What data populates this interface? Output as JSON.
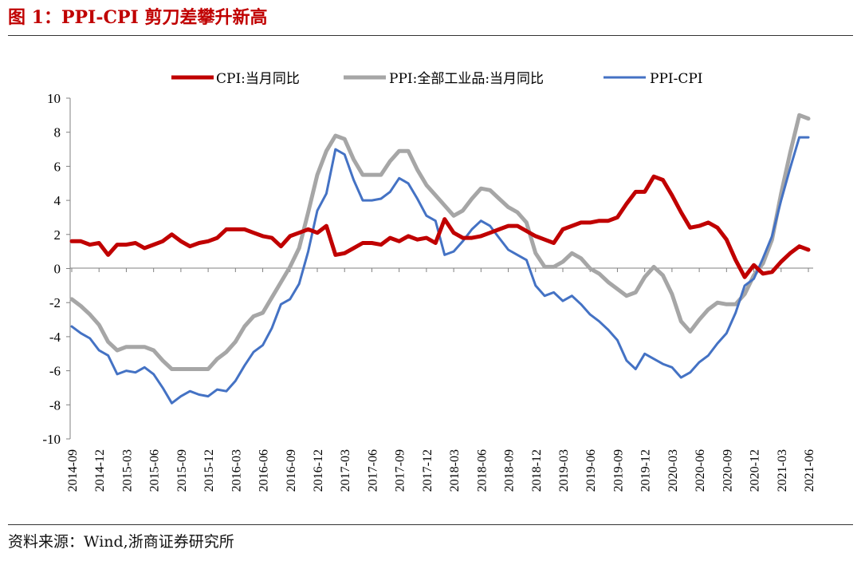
{
  "figure": {
    "title": "图 1：PPI-CPI 剪刀差攀升新高",
    "source": "资料来源：Wind,浙商证券研究所"
  },
  "colors": {
    "title": "#c00000",
    "cpi": "#c00000",
    "ppi": "#a6a6a6",
    "diff": "#4472c4",
    "axis": "#808080"
  },
  "chart_data": {
    "type": "line",
    "title": "PPI-CPI 剪刀差攀升新高",
    "xlabel": "",
    "ylabel": "",
    "ylim": [
      -10,
      10
    ],
    "yticks": [
      -10,
      -8,
      -6,
      -4,
      -2,
      0,
      2,
      4,
      6,
      8,
      10
    ],
    "xticks": [
      "2014-09",
      "2014-12",
      "2015-03",
      "2015-06",
      "2015-09",
      "2015-12",
      "2016-03",
      "2016-06",
      "2016-09",
      "2016-12",
      "2017-03",
      "2017-06",
      "2017-09",
      "2017-12",
      "2018-03",
      "2018-06",
      "2018-09",
      "2018-12",
      "2019-03",
      "2019-06",
      "2019-09",
      "2019-12",
      "2020-03",
      "2020-06",
      "2020-09",
      "2020-12",
      "2021-03",
      "2021-06"
    ],
    "legend_position": "top",
    "series": [
      {
        "name": "CPI:当月同比",
        "key": "cpi",
        "values": [
          1.6,
          1.6,
          1.4,
          1.5,
          0.8,
          1.4,
          1.4,
          1.5,
          1.2,
          1.4,
          1.6,
          2.0,
          1.6,
          1.3,
          1.5,
          1.6,
          1.8,
          2.3,
          2.3,
          2.3,
          2.1,
          1.9,
          1.8,
          1.3,
          1.9,
          2.1,
          2.3,
          2.1,
          2.5,
          0.8,
          0.9,
          1.2,
          1.5,
          1.5,
          1.4,
          1.8,
          1.6,
          1.9,
          1.7,
          1.8,
          1.5,
          2.9,
          2.1,
          1.8,
          1.8,
          1.9,
          2.1,
          2.3,
          2.5,
          2.5,
          2.2,
          1.9,
          1.7,
          1.5,
          2.3,
          2.5,
          2.7,
          2.7,
          2.8,
          2.8,
          3.0,
          3.8,
          4.5,
          4.5,
          5.4,
          5.2,
          4.3,
          3.3,
          2.4,
          2.5,
          2.7,
          2.4,
          1.7,
          0.5,
          -0.5,
          0.2,
          -0.3,
          -0.2,
          0.4,
          0.9,
          1.3,
          1.1
        ]
      },
      {
        "name": "PPI:全部工业品:当月同比",
        "key": "ppi",
        "values": [
          -1.8,
          -2.2,
          -2.7,
          -3.3,
          -4.3,
          -4.8,
          -4.6,
          -4.6,
          -4.6,
          -4.8,
          -5.4,
          -5.9,
          -5.9,
          -5.9,
          -5.9,
          -5.9,
          -5.3,
          -4.9,
          -4.3,
          -3.4,
          -2.8,
          -2.6,
          -1.7,
          -0.8,
          0.1,
          1.2,
          3.3,
          5.5,
          6.9,
          7.8,
          7.6,
          6.4,
          5.5,
          5.5,
          5.5,
          6.3,
          6.9,
          6.9,
          5.8,
          4.9,
          4.3,
          3.7,
          3.1,
          3.4,
          4.1,
          4.7,
          4.6,
          4.1,
          3.6,
          3.3,
          2.7,
          0.9,
          0.1,
          0.1,
          0.4,
          0.9,
          0.6,
          0.0,
          -0.3,
          -0.8,
          -1.2,
          -1.6,
          -1.4,
          -0.5,
          0.1,
          -0.4,
          -1.5,
          -3.1,
          -3.7,
          -3.0,
          -2.4,
          -2.0,
          -2.1,
          -2.1,
          -1.5,
          -0.4,
          0.3,
          1.7,
          4.4,
          6.8,
          9.0,
          8.8
        ]
      },
      {
        "name": "PPI-CPI",
        "key": "diff",
        "values": [
          -3.4,
          -3.8,
          -4.1,
          -4.8,
          -5.1,
          -6.2,
          -6.0,
          -6.1,
          -5.8,
          -6.2,
          -7.0,
          -7.9,
          -7.5,
          -7.2,
          -7.4,
          -7.5,
          -7.1,
          -7.2,
          -6.6,
          -5.7,
          -4.9,
          -4.5,
          -3.5,
          -2.1,
          -1.8,
          -0.9,
          1.0,
          3.4,
          4.4,
          7.0,
          6.7,
          5.2,
          4.0,
          4.0,
          4.1,
          4.5,
          5.3,
          5.0,
          4.1,
          3.1,
          2.8,
          0.8,
          1.0,
          1.6,
          2.3,
          2.8,
          2.5,
          1.8,
          1.1,
          0.8,
          0.5,
          -1.0,
          -1.6,
          -1.4,
          -1.9,
          -1.6,
          -2.1,
          -2.7,
          -3.1,
          -3.6,
          -4.2,
          -5.4,
          -5.9,
          -5.0,
          -5.3,
          -5.6,
          -5.8,
          -6.4,
          -6.1,
          -5.5,
          -5.1,
          -4.4,
          -3.8,
          -2.6,
          -1.0,
          -0.6,
          0.6,
          1.9,
          4.0,
          5.9,
          7.7,
          7.7
        ]
      }
    ]
  }
}
